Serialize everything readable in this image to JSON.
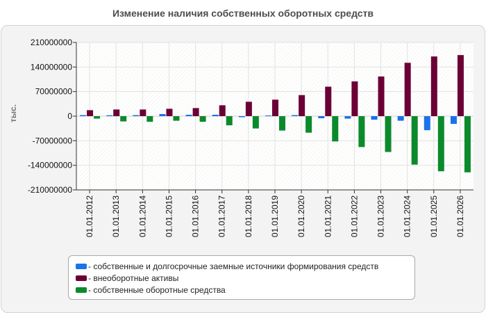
{
  "chart_data": {
    "type": "bar",
    "title": "Изменение наличия собственных оборотных средств",
    "ylabel": "тыс.",
    "xlabel": "",
    "ylim": [
      -210000000,
      210000000
    ],
    "yticks": [
      210000000,
      140000000,
      70000000,
      0,
      -70000000,
      -140000000,
      -210000000
    ],
    "ytick_labels": [
      "210000000",
      "140000000",
      "70000000",
      "0",
      "-70000000",
      "-140000000",
      "-210000000"
    ],
    "grid": true,
    "legend_position": "bottom",
    "categories": [
      "01.01.2012",
      "01.01.2013",
      "01.01.2014",
      "01.01.2015",
      "01.01.2016",
      "01.01.2017",
      "01.01.2018",
      "01.01.2019",
      "01.01.2020",
      "01.01.2021",
      "01.01.2022",
      "01.01.2023",
      "01.01.2024",
      "01.01.2025",
      "01.01.2026"
    ],
    "series": [
      {
        "name": "- собственные и долгосрочные заемные источники формирования средств",
        "color": "#1a73e8",
        "values": [
          3000000,
          2500000,
          3000000,
          6000000,
          4000000,
          4000000,
          -3000000,
          2000000,
          3000000,
          -6000000,
          -7000000,
          -10000000,
          -13000000,
          -40000000,
          -22000000
        ]
      },
      {
        "name": "- внеоборотные активы",
        "color": "#6b0035",
        "values": [
          17000000,
          19000000,
          19000000,
          21000000,
          23000000,
          31000000,
          41000000,
          47000000,
          60000000,
          84000000,
          99000000,
          113000000,
          152000000,
          170000000,
          174000000
        ]
      },
      {
        "name": "- собственные оборотные средства",
        "color": "#0b8a2c",
        "values": [
          -7000000,
          -15000000,
          -16000000,
          -13000000,
          -16000000,
          -26000000,
          -35000000,
          -41000000,
          -47000000,
          -72000000,
          -88000000,
          -102000000,
          -138000000,
          -157000000,
          -160000000
        ]
      }
    ]
  }
}
